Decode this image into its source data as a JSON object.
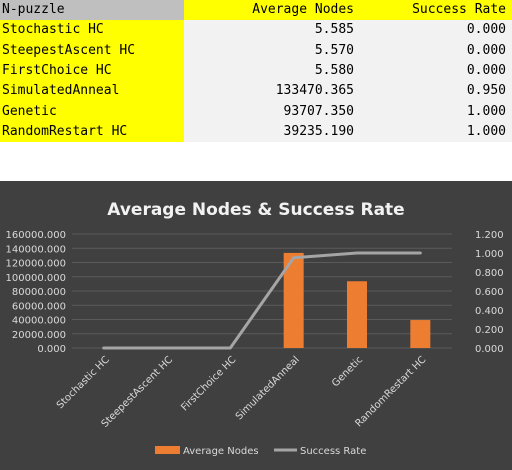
{
  "table": {
    "headers": [
      "N-puzzle",
      "Average Nodes",
      "Success Rate"
    ],
    "rows": [
      [
        "Stochastic HC",
        "5.585",
        "0.000"
      ],
      [
        "SteepestAscent HC",
        "5.570",
        "0.000"
      ],
      [
        "FirstChoice HC",
        "5.580",
        "0.000"
      ],
      [
        "SimulatedAnneal",
        "133470.365",
        "0.950"
      ],
      [
        "Genetic",
        "93707.350",
        "1.000"
      ],
      [
        "RandomRestart HC",
        "39235.190",
        "1.000"
      ]
    ]
  },
  "chart_data": {
    "type": "bar",
    "title": "Average Nodes & Success Rate",
    "categories": [
      "Stochastic HC",
      "SteepestAscent HC",
      "FirstChoice HC",
      "SimulatedAnneal",
      "Genetic",
      "RandomRestart HC"
    ],
    "series": [
      {
        "name": "Average Nodes",
        "type": "bar",
        "axis": "left",
        "color": "#ed7d31",
        "values": [
          5.585,
          5.57,
          5.58,
          133470.365,
          93707.35,
          39235.19
        ]
      },
      {
        "name": "Success Rate",
        "type": "line",
        "axis": "right",
        "color": "#a5a5a5",
        "values": [
          0,
          0,
          0,
          0.95,
          1,
          1
        ]
      }
    ],
    "ylim_left": [
      0,
      160000
    ],
    "yticks_left": [
      "0.000",
      "20000.000",
      "40000.000",
      "60000.000",
      "80000.000",
      "100000.000",
      "120000.000",
      "140000.000",
      "160000.000"
    ],
    "ylim_right": [
      0,
      1.2
    ],
    "yticks_right": [
      "0.000",
      "0.200",
      "0.400",
      "0.600",
      "0.800",
      "1.000",
      "1.200"
    ],
    "grid": true,
    "legend": "bottom"
  }
}
